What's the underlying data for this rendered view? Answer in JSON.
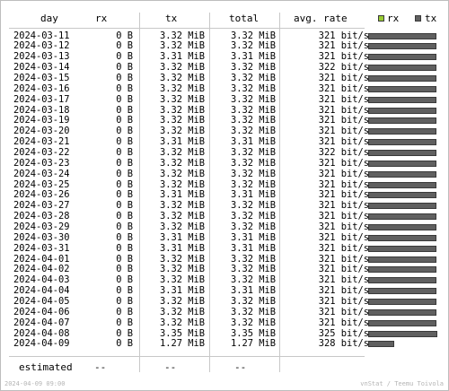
{
  "colors": {
    "rx": "#99cc33",
    "tx": "#606060",
    "text": "#000000",
    "separator": "#c8c8c8",
    "footer": "#b4b4b4"
  },
  "header": {
    "day": "day",
    "rx": "rx",
    "tx": "tx",
    "total": "total",
    "rate": "avg. rate"
  },
  "legend": {
    "rx": "rx",
    "tx": "tx"
  },
  "rows": [
    {
      "day": "2024-03-11",
      "rx": "0 B",
      "tx": "3.32 MiB",
      "total": "3.32 MiB",
      "rate": "321 bit/s",
      "bar": 0.99
    },
    {
      "day": "2024-03-12",
      "rx": "0 B",
      "tx": "3.32 MiB",
      "total": "3.32 MiB",
      "rate": "321 bit/s",
      "bar": 0.99
    },
    {
      "day": "2024-03-13",
      "rx": "0 B",
      "tx": "3.31 MiB",
      "total": "3.31 MiB",
      "rate": "321 bit/s",
      "bar": 0.99
    },
    {
      "day": "2024-03-14",
      "rx": "0 B",
      "tx": "3.32 MiB",
      "total": "3.32 MiB",
      "rate": "322 bit/s",
      "bar": 0.99
    },
    {
      "day": "2024-03-15",
      "rx": "0 B",
      "tx": "3.32 MiB",
      "total": "3.32 MiB",
      "rate": "321 bit/s",
      "bar": 0.99
    },
    {
      "day": "2024-03-16",
      "rx": "0 B",
      "tx": "3.32 MiB",
      "total": "3.32 MiB",
      "rate": "321 bit/s",
      "bar": 0.99
    },
    {
      "day": "2024-03-17",
      "rx": "0 B",
      "tx": "3.32 MiB",
      "total": "3.32 MiB",
      "rate": "321 bit/s",
      "bar": 0.99
    },
    {
      "day": "2024-03-18",
      "rx": "0 B",
      "tx": "3.32 MiB",
      "total": "3.32 MiB",
      "rate": "321 bit/s",
      "bar": 0.99
    },
    {
      "day": "2024-03-19",
      "rx": "0 B",
      "tx": "3.32 MiB",
      "total": "3.32 MiB",
      "rate": "321 bit/s",
      "bar": 0.99
    },
    {
      "day": "2024-03-20",
      "rx": "0 B",
      "tx": "3.32 MiB",
      "total": "3.32 MiB",
      "rate": "321 bit/s",
      "bar": 0.99
    },
    {
      "day": "2024-03-21",
      "rx": "0 B",
      "tx": "3.31 MiB",
      "total": "3.31 MiB",
      "rate": "321 bit/s",
      "bar": 0.99
    },
    {
      "day": "2024-03-22",
      "rx": "0 B",
      "tx": "3.32 MiB",
      "total": "3.32 MiB",
      "rate": "322 bit/s",
      "bar": 0.99
    },
    {
      "day": "2024-03-23",
      "rx": "0 B",
      "tx": "3.32 MiB",
      "total": "3.32 MiB",
      "rate": "321 bit/s",
      "bar": 0.99
    },
    {
      "day": "2024-03-24",
      "rx": "0 B",
      "tx": "3.32 MiB",
      "total": "3.32 MiB",
      "rate": "321 bit/s",
      "bar": 0.99
    },
    {
      "day": "2024-03-25",
      "rx": "0 B",
      "tx": "3.32 MiB",
      "total": "3.32 MiB",
      "rate": "321 bit/s",
      "bar": 0.99
    },
    {
      "day": "2024-03-26",
      "rx": "0 B",
      "tx": "3.31 MiB",
      "total": "3.31 MiB",
      "rate": "321 bit/s",
      "bar": 0.99
    },
    {
      "day": "2024-03-27",
      "rx": "0 B",
      "tx": "3.32 MiB",
      "total": "3.32 MiB",
      "rate": "321 bit/s",
      "bar": 0.99
    },
    {
      "day": "2024-03-28",
      "rx": "0 B",
      "tx": "3.32 MiB",
      "total": "3.32 MiB",
      "rate": "321 bit/s",
      "bar": 0.99
    },
    {
      "day": "2024-03-29",
      "rx": "0 B",
      "tx": "3.32 MiB",
      "total": "3.32 MiB",
      "rate": "321 bit/s",
      "bar": 0.99
    },
    {
      "day": "2024-03-30",
      "rx": "0 B",
      "tx": "3.31 MiB",
      "total": "3.31 MiB",
      "rate": "321 bit/s",
      "bar": 0.99
    },
    {
      "day": "2024-03-31",
      "rx": "0 B",
      "tx": "3.31 MiB",
      "total": "3.31 MiB",
      "rate": "321 bit/s",
      "bar": 0.99
    },
    {
      "day": "2024-04-01",
      "rx": "0 B",
      "tx": "3.32 MiB",
      "total": "3.32 MiB",
      "rate": "321 bit/s",
      "bar": 0.99
    },
    {
      "day": "2024-04-02",
      "rx": "0 B",
      "tx": "3.32 MiB",
      "total": "3.32 MiB",
      "rate": "321 bit/s",
      "bar": 0.99
    },
    {
      "day": "2024-04-03",
      "rx": "0 B",
      "tx": "3.32 MiB",
      "total": "3.32 MiB",
      "rate": "321 bit/s",
      "bar": 0.99
    },
    {
      "day": "2024-04-04",
      "rx": "0 B",
      "tx": "3.31 MiB",
      "total": "3.31 MiB",
      "rate": "321 bit/s",
      "bar": 0.99
    },
    {
      "day": "2024-04-05",
      "rx": "0 B",
      "tx": "3.32 MiB",
      "total": "3.32 MiB",
      "rate": "321 bit/s",
      "bar": 0.99
    },
    {
      "day": "2024-04-06",
      "rx": "0 B",
      "tx": "3.32 MiB",
      "total": "3.32 MiB",
      "rate": "321 bit/s",
      "bar": 0.99
    },
    {
      "day": "2024-04-07",
      "rx": "0 B",
      "tx": "3.32 MiB",
      "total": "3.32 MiB",
      "rate": "321 bit/s",
      "bar": 0.99
    },
    {
      "day": "2024-04-08",
      "rx": "0 B",
      "tx": "3.35 MiB",
      "total": "3.35 MiB",
      "rate": "325 bit/s",
      "bar": 1.0
    },
    {
      "day": "2024-04-09",
      "rx": "0 B",
      "tx": "1.27 MiB",
      "total": "1.27 MiB",
      "rate": "328 bit/s",
      "bar": 0.38
    }
  ],
  "estimated": {
    "label": "estimated",
    "rx": "--",
    "tx": "--",
    "total": "--"
  },
  "footer": {
    "timestamp": "2024-04-09 09:00",
    "credit": "vnStat / Teemu Toivola"
  }
}
